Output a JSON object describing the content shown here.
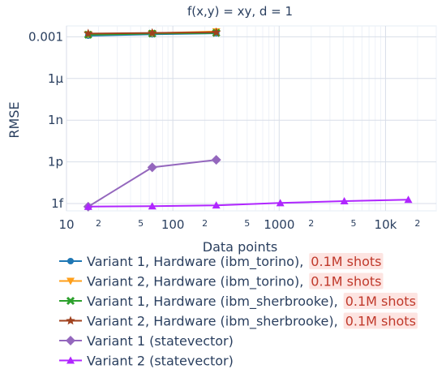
{
  "chart_data": {
    "type": "line",
    "title": "f(x,y) = xy, d = 1",
    "xlabel": "Data points",
    "ylabel": "RMSE",
    "x_scale": "log",
    "y_scale": "log",
    "xlim": [
      10,
      30000
    ],
    "ylim": [
      3e-16,
      0.006
    ],
    "grid": true,
    "legend_placement": "bottom",
    "x_ticks": [
      {
        "value": 10,
        "label": "10"
      },
      {
        "value": 100,
        "label": "100"
      },
      {
        "value": 1000,
        "label": "1000"
      },
      {
        "value": 10000,
        "label": "10k"
      }
    ],
    "x_minor_ticks": [
      {
        "value": 20,
        "label": "2"
      },
      {
        "value": 50,
        "label": "5"
      },
      {
        "value": 200,
        "label": "2"
      },
      {
        "value": 500,
        "label": "5"
      },
      {
        "value": 2000,
        "label": "2"
      },
      {
        "value": 5000,
        "label": "5"
      },
      {
        "value": 20000,
        "label": "2"
      }
    ],
    "y_ticks": [
      {
        "value": 1e-15,
        "label": "1f"
      },
      {
        "value": 1e-12,
        "label": "1p"
      },
      {
        "value": 1e-09,
        "label": "1n"
      },
      {
        "value": 1e-06,
        "label": "1μ"
      },
      {
        "value": 0.001,
        "label": "0.001"
      }
    ],
    "series": [
      {
        "name": "Variant 1, Hardware (ibm_torino),",
        "shots": "0.1M shots",
        "color": "#1f77b4",
        "marker": "circle",
        "x": [
          16,
          64,
          256
        ],
        "y": [
          0.0012,
          0.0015,
          0.0018
        ]
      },
      {
        "name": "Variant 2, Hardware (ibm_torino),",
        "shots": "0.1M shots",
        "color": "#ff9f1a",
        "marker": "triangle-down",
        "x": [
          16,
          64,
          256
        ],
        "y": [
          0.0015,
          0.0018,
          0.0024
        ]
      },
      {
        "name": "Variant 1, Hardware (ibm_sherbrooke),",
        "shots": "0.1M shots",
        "color": "#2ca02c",
        "marker": "x",
        "x": [
          16,
          64,
          256
        ],
        "y": [
          0.0014,
          0.0017,
          0.0019
        ]
      },
      {
        "name": "Variant 2, Hardware (ibm_sherbrooke),",
        "shots": "0.1M shots",
        "color": "#a0411e",
        "marker": "star",
        "x": [
          16,
          64,
          256
        ],
        "y": [
          0.0017,
          0.0019,
          0.0021
        ]
      },
      {
        "name": "Variant 1 (statevector)",
        "shots": "",
        "color": "#9467bd",
        "marker": "diamond",
        "x": [
          16,
          64,
          256
        ],
        "y": [
          6e-16,
          4e-13,
          1.4e-12
        ]
      },
      {
        "name": "Variant 2 (statevector)",
        "shots": "",
        "color": "#b026ff",
        "marker": "triangle-up",
        "x": [
          16,
          64,
          256,
          1024,
          4096,
          16384
        ],
        "y": [
          6e-16,
          6.5e-16,
          7.5e-16,
          1.1e-15,
          1.5e-15,
          1.9e-15
        ]
      }
    ]
  }
}
